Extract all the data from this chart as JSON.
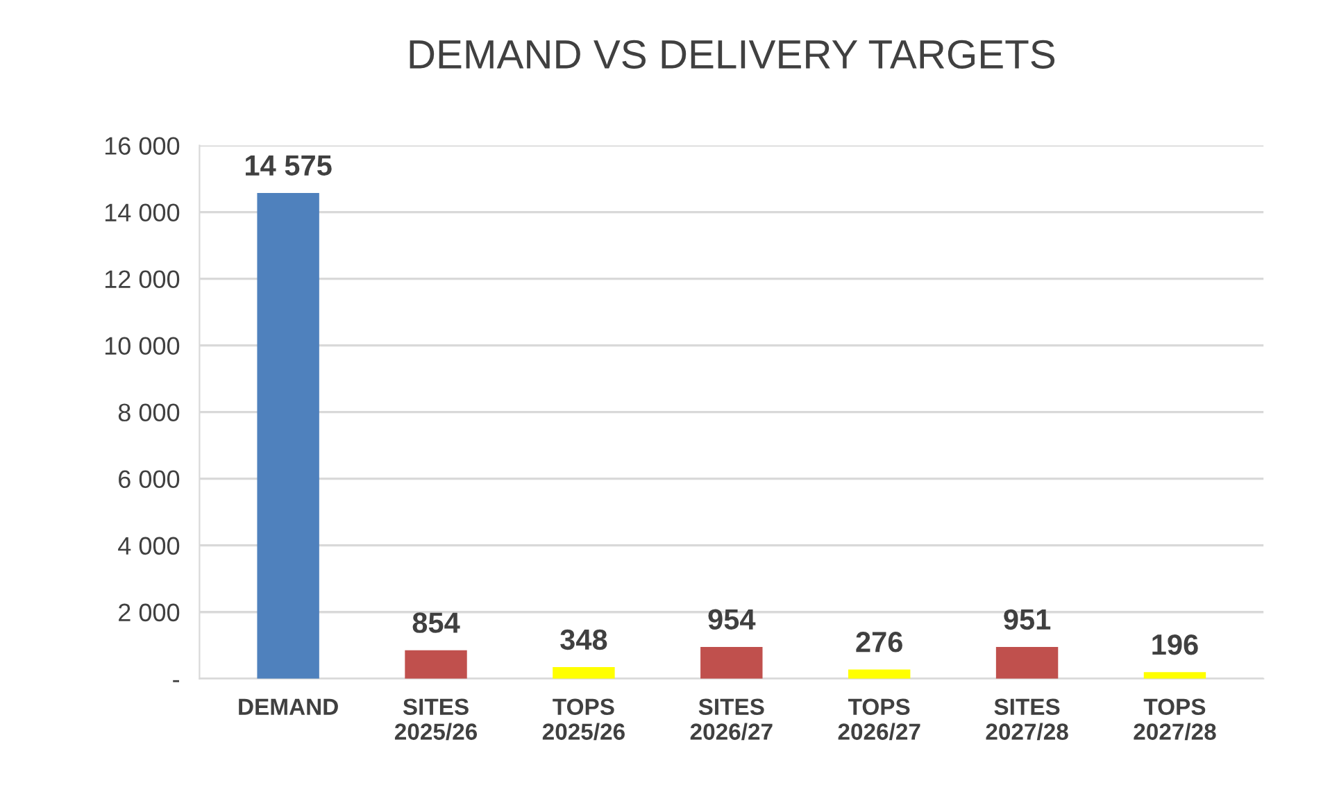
{
  "chart_data": {
    "type": "bar",
    "title": "DEMAND VS DELIVERY TARGETS",
    "categories": [
      "DEMAND",
      "SITES\n2025/26",
      "TOPS\n2025/26",
      "SITES\n2026/27",
      "TOPS\n2026/27",
      "SITES\n2027/28",
      "TOPS\n2027/28"
    ],
    "values": [
      14575,
      854,
      348,
      954,
      276,
      951,
      196
    ],
    "colors": [
      "#4f81bd",
      "#c0504d",
      "#ffff00",
      "#c0504d",
      "#ffff00",
      "#c0504d",
      "#ffff00"
    ],
    "value_labels": [
      "14 575",
      "854",
      "348",
      "954",
      "276",
      "951",
      "196"
    ],
    "ylim": [
      0,
      16000
    ],
    "yticks": [
      {
        "value": 0,
        "label": "-"
      },
      {
        "value": 2000,
        "label": "2 000"
      },
      {
        "value": 4000,
        "label": "4 000"
      },
      {
        "value": 6000,
        "label": "6 000"
      },
      {
        "value": 8000,
        "label": "8 000"
      },
      {
        "value": 10000,
        "label": "10 000"
      },
      {
        "value": 12000,
        "label": "12 000"
      },
      {
        "value": 14000,
        "label": "14 000"
      },
      {
        "value": 16000,
        "label": "16 000"
      }
    ],
    "grid": "y",
    "legend": false
  }
}
